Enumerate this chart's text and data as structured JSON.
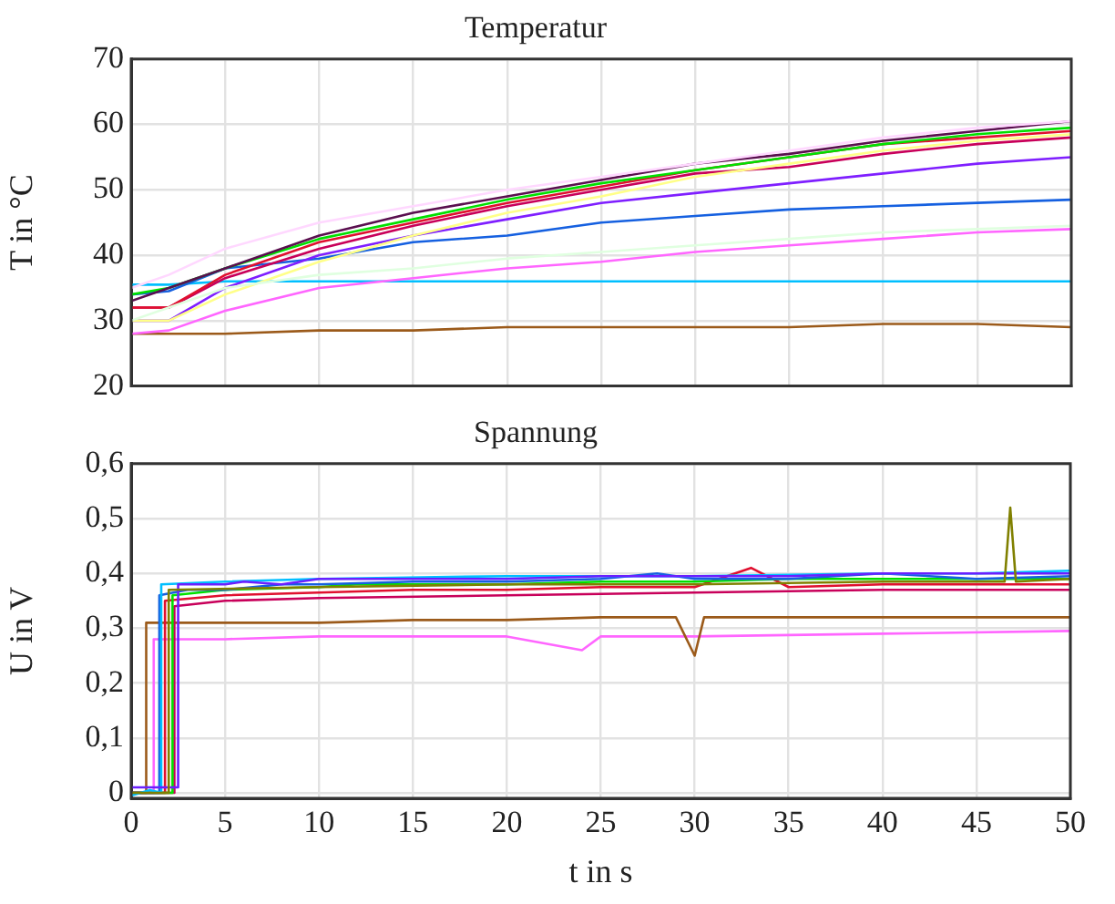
{
  "chart_data": [
    {
      "type": "line",
      "title": "Temperatur",
      "ylabel": "T in °C",
      "x": [
        0,
        2,
        5,
        10,
        15,
        20,
        25,
        30,
        35,
        40,
        45,
        50
      ],
      "xlim": [
        0,
        50
      ],
      "xticks": [
        0,
        5,
        10,
        15,
        20,
        25,
        30,
        35,
        40,
        45,
        50
      ],
      "ylim": [
        20,
        70
      ],
      "yticks": [
        20,
        30,
        40,
        50,
        60,
        70
      ],
      "tick_labels": "y",
      "grid": true,
      "marker": "none",
      "series": [
        {
          "color": "#ffd8ff",
          "values": [
            35,
            37,
            41,
            45,
            47.5,
            50,
            52,
            54,
            56,
            58,
            59.5,
            60.5
          ]
        },
        {
          "color": "#e0ffe0",
          "values": [
            30,
            32,
            35,
            37,
            38,
            39.5,
            40.5,
            41.5,
            42.5,
            43.5,
            44,
            44.5
          ]
        },
        {
          "color": "#ffff88",
          "values": [
            30,
            30,
            34,
            39,
            43,
            46.5,
            49,
            52,
            54,
            56,
            57.5,
            58.5
          ]
        },
        {
          "color": "#5a0f4f",
          "values": [
            33,
            35,
            38,
            43,
            46.5,
            49,
            51.5,
            54,
            55.5,
            57.5,
            59,
            60.5
          ]
        },
        {
          "color": "#00e000",
          "values": [
            34,
            35,
            38,
            42.5,
            45.5,
            48.5,
            51,
            53,
            55,
            57,
            58.5,
            59.5
          ]
        },
        {
          "color": "#e0102f",
          "values": [
            32,
            32,
            37,
            42,
            45,
            48,
            50.5,
            53,
            55,
            57,
            58,
            59
          ]
        },
        {
          "color": "#c8005a",
          "values": [
            32,
            32,
            36.5,
            41,
            44.5,
            47.5,
            50,
            52.5,
            53.5,
            55.5,
            57,
            58
          ]
        },
        {
          "color": "#7f1fff",
          "values": [
            30,
            30,
            35,
            40,
            43,
            45.5,
            48,
            49.5,
            51,
            52.5,
            54,
            55
          ]
        },
        {
          "color": "#1560e0",
          "values": [
            34,
            34.5,
            38,
            39.5,
            42,
            43,
            45,
            46,
            47,
            47.5,
            48,
            48.5
          ]
        },
        {
          "color": "#ff66ff",
          "values": [
            28,
            28.5,
            31.5,
            35,
            36.5,
            38,
            39,
            40.5,
            41.5,
            42.5,
            43.5,
            44
          ]
        },
        {
          "color": "#00bfff",
          "values": [
            35.5,
            35.5,
            36,
            36,
            36,
            36,
            36,
            36,
            36,
            36,
            36,
            36
          ]
        },
        {
          "color": "#9b5a1a",
          "values": [
            28,
            28,
            28,
            28.5,
            28.5,
            29,
            29,
            29,
            29,
            29.5,
            29.5,
            29
          ]
        }
      ]
    },
    {
      "type": "line",
      "title": "Spannung",
      "ylabel": "U in V",
      "xlabel": "t in s",
      "xlim": [
        0,
        50
      ],
      "xticks": [
        0,
        5,
        10,
        15,
        20,
        25,
        30,
        35,
        40,
        45,
        50
      ],
      "ylim": [
        -0.01,
        0.6
      ],
      "yticks": [
        0,
        {
          "value": 0.1,
          "label": "0,1"
        },
        {
          "value": 0.2,
          "label": "0,2"
        },
        {
          "value": 0.3,
          "label": "0,3"
        },
        {
          "value": 0.4,
          "label": "0,4"
        },
        {
          "value": 0.5,
          "label": "0,5"
        },
        {
          "value": 0.6,
          "label": "0,6"
        }
      ],
      "grid": true,
      "marker": "none",
      "series": [
        {
          "color": "#808000",
          "x": [
            0,
            2,
            2,
            10,
            20,
            30,
            40,
            46.5,
            46.8,
            47.1,
            50
          ],
          "values": [
            0,
            0,
            0.37,
            0.375,
            0.38,
            0.38,
            0.385,
            0.385,
            0.52,
            0.385,
            0.39
          ]
        },
        {
          "color": "#6a1fff",
          "x": [
            0,
            2.5,
            2.5,
            5,
            6,
            8,
            10,
            12,
            15,
            18,
            20,
            25,
            30,
            35,
            40,
            45,
            47,
            50
          ],
          "values": [
            0.01,
            0.01,
            0.38,
            0.38,
            0.385,
            0.38,
            0.39,
            0.39,
            0.39,
            0.39,
            0.39,
            0.395,
            0.395,
            0.395,
            0.4,
            0.4,
            0.4,
            0.4
          ]
        },
        {
          "color": "#00bfff",
          "x": [
            0,
            1,
            1.6,
            1.6,
            5,
            10,
            20,
            30,
            40,
            45,
            50
          ],
          "values": [
            -0.005,
            0.005,
            0,
            0.38,
            0.385,
            0.39,
            0.395,
            0.395,
            0.4,
            0.4,
            0.405
          ]
        },
        {
          "color": "#1560e0",
          "x": [
            0,
            1.5,
            1.5,
            3,
            5,
            8,
            10,
            15,
            20,
            25,
            28,
            30,
            35,
            40,
            45,
            50
          ],
          "values": [
            0,
            0,
            0.36,
            0.37,
            0.37,
            0.38,
            0.38,
            0.385,
            0.385,
            0.39,
            0.4,
            0.39,
            0.39,
            0.4,
            0.39,
            0.395
          ]
        },
        {
          "color": "#00e000",
          "x": [
            0,
            2.2,
            2.2,
            5,
            10,
            12,
            15,
            20,
            25,
            30,
            35,
            40,
            45,
            50
          ],
          "values": [
            0,
            0,
            0.36,
            0.37,
            0.375,
            0.38,
            0.38,
            0.38,
            0.385,
            0.385,
            0.39,
            0.39,
            0.39,
            0.39
          ]
        },
        {
          "color": "#e0102f",
          "x": [
            0,
            1.8,
            1.8,
            5,
            10,
            15,
            20,
            25,
            30,
            33,
            35,
            40,
            45,
            50
          ],
          "values": [
            0,
            0,
            0.35,
            0.36,
            0.365,
            0.37,
            0.37,
            0.375,
            0.375,
            0.41,
            0.375,
            0.38,
            0.38,
            0.38
          ]
        },
        {
          "color": "#c8005a",
          "x": [
            0,
            2.3,
            2.3,
            5,
            10,
            20,
            30,
            40,
            50
          ],
          "values": [
            0,
            0,
            0.34,
            0.35,
            0.355,
            0.36,
            0.365,
            0.37,
            0.37
          ]
        },
        {
          "color": "#9b5a1a",
          "x": [
            0,
            0.8,
            0.8,
            5,
            10,
            15,
            20,
            25,
            29,
            30,
            30.5,
            35,
            40,
            45,
            50
          ],
          "values": [
            0,
            0,
            0.31,
            0.31,
            0.31,
            0.315,
            0.315,
            0.32,
            0.32,
            0.25,
            0.32,
            0.32,
            0.32,
            0.32,
            0.32
          ]
        },
        {
          "color": "#ff66ff",
          "x": [
            0,
            1.2,
            1.2,
            5,
            10,
            20,
            24,
            25,
            30,
            40,
            50
          ],
          "values": [
            0,
            0,
            0.28,
            0.28,
            0.285,
            0.285,
            0.26,
            0.285,
            0.285,
            0.29,
            0.295
          ]
        }
      ]
    }
  ]
}
